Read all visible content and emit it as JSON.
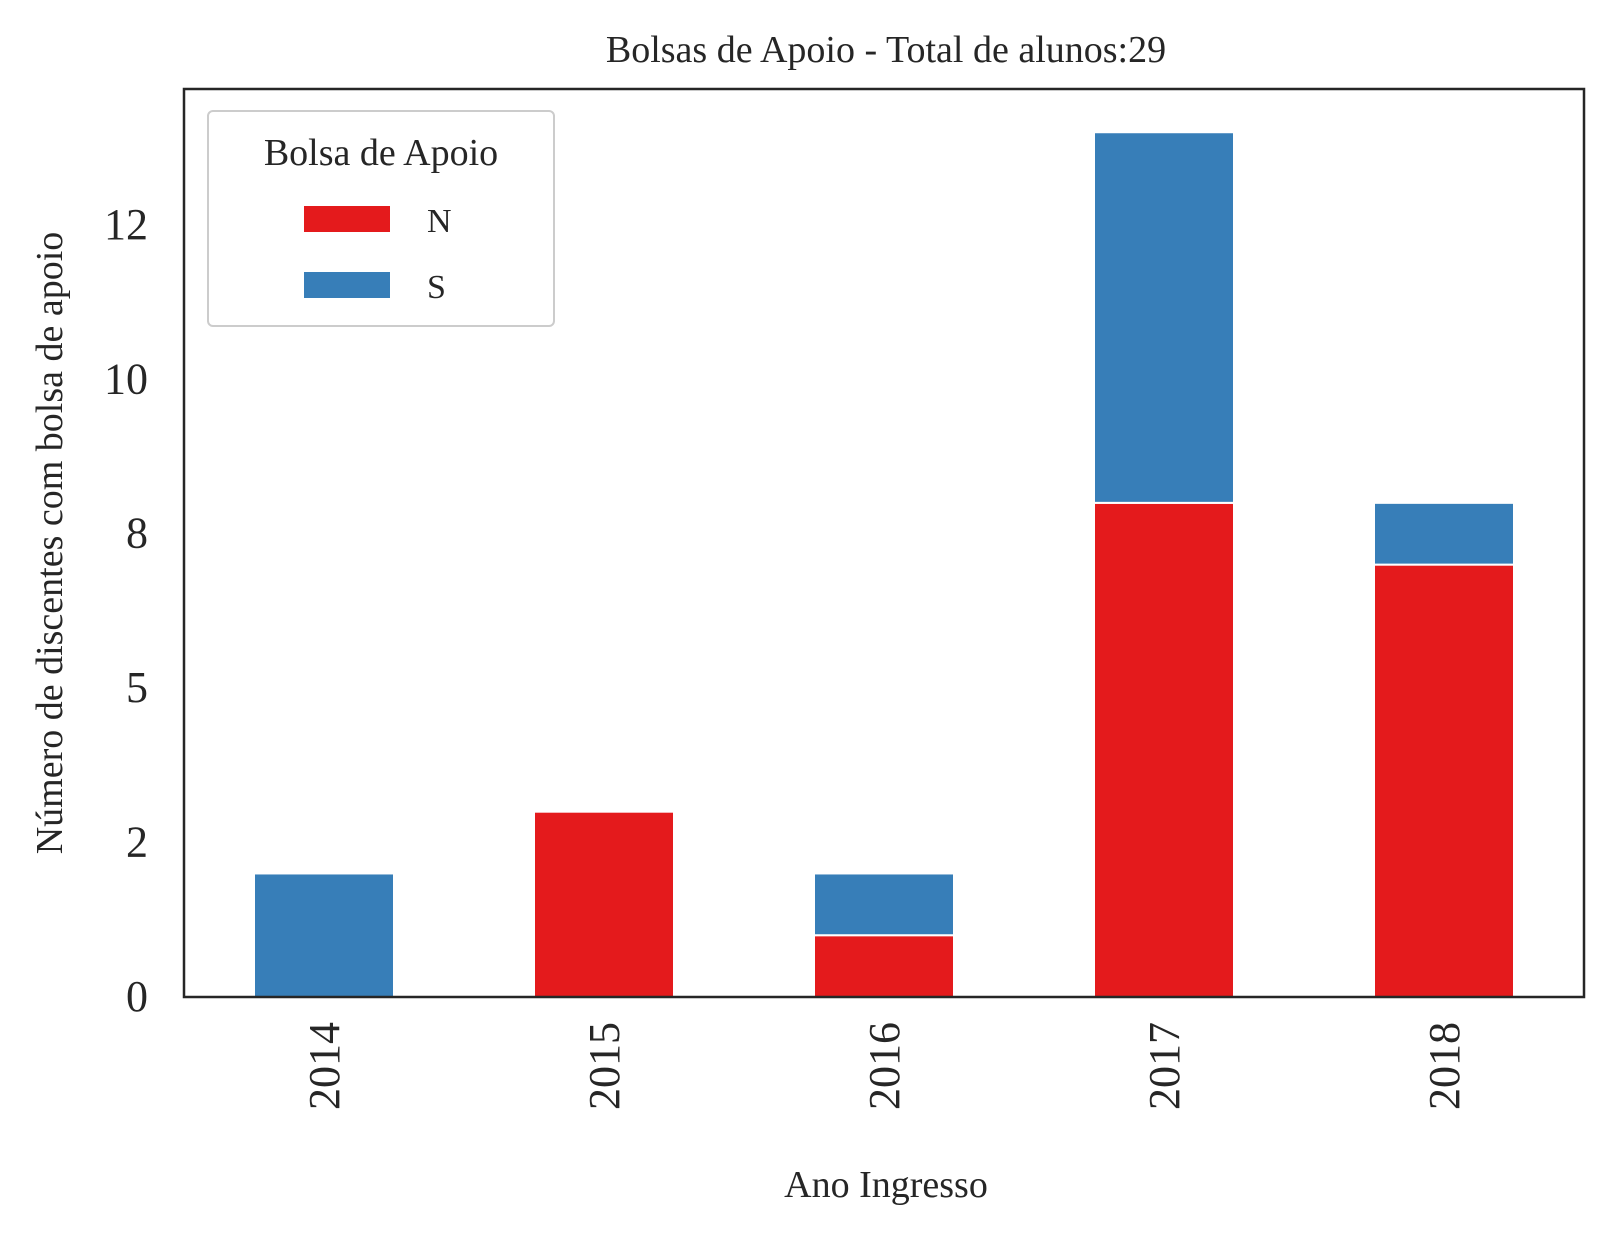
{
  "chart_data": {
    "type": "bar",
    "stacked": true,
    "title": "Bolsas de Apoio - Total de alunos:29",
    "xlabel": "Ano Ingresso",
    "ylabel": "Número de discentes com bolsa de apoio",
    "categories": [
      "2014",
      "2015",
      "2016",
      "2017",
      "2018"
    ],
    "series": [
      {
        "name": "N",
        "color": "#e41a1c",
        "values": [
          0,
          3,
          1,
          8,
          7
        ]
      },
      {
        "name": "S",
        "color": "#377eb8",
        "values": [
          2,
          0,
          1,
          6,
          1
        ]
      }
    ],
    "ylim": [
      0,
      14.7
    ],
    "yticks": [
      0,
      2.5,
      5,
      7.5,
      10,
      12.5
    ],
    "ytick_labels": [
      "0",
      "2",
      "5",
      "8",
      "10",
      "12"
    ],
    "legend": {
      "title": "Bolsa de Apoio",
      "placement": "upper-left"
    },
    "grid": false
  }
}
